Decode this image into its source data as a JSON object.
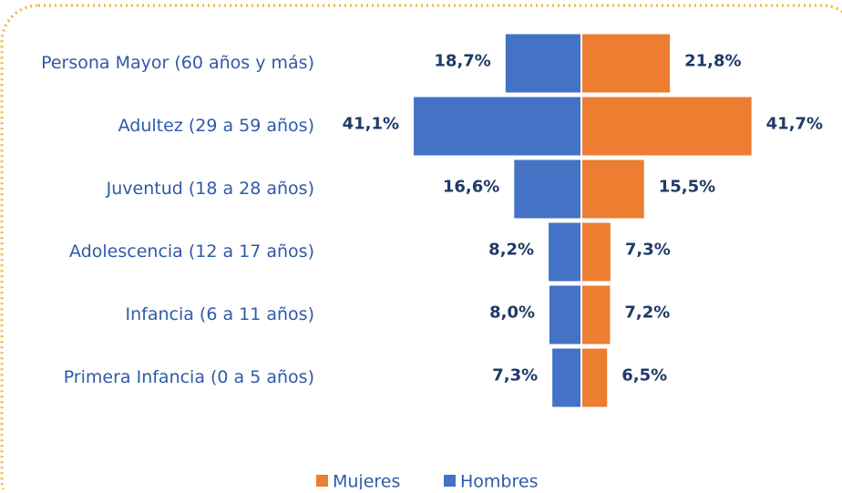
{
  "chart_data": {
    "type": "pyramid",
    "categories": [
      "Persona Mayor (60 años y más)",
      "Adultez (29 a 59 años)",
      "Juventud (18 a 28 años)",
      "Adolescencia (12 a 17 años)",
      "Infancia (6 a 11 años)",
      "Primera Infancia (0 a 5 años)"
    ],
    "series": [
      {
        "name": "Hombres",
        "color": "#4472c4",
        "side": "left",
        "values": [
          18.7,
          41.1,
          16.6,
          8.2,
          8.0,
          7.3
        ],
        "value_labels": [
          "18,7%",
          "41,1%",
          "16,6%",
          "8,2%",
          "8,0%",
          "7,3%"
        ]
      },
      {
        "name": "Mujeres",
        "color": "#ed7d31",
        "side": "right",
        "values": [
          21.8,
          41.7,
          15.5,
          7.3,
          7.2,
          6.5
        ],
        "value_labels": [
          "21,8%",
          "41,7%",
          "15,5%",
          "7,3%",
          "7,2%",
          "6,5%"
        ]
      }
    ],
    "legend_order": [
      "Mujeres",
      "Hombres"
    ]
  }
}
